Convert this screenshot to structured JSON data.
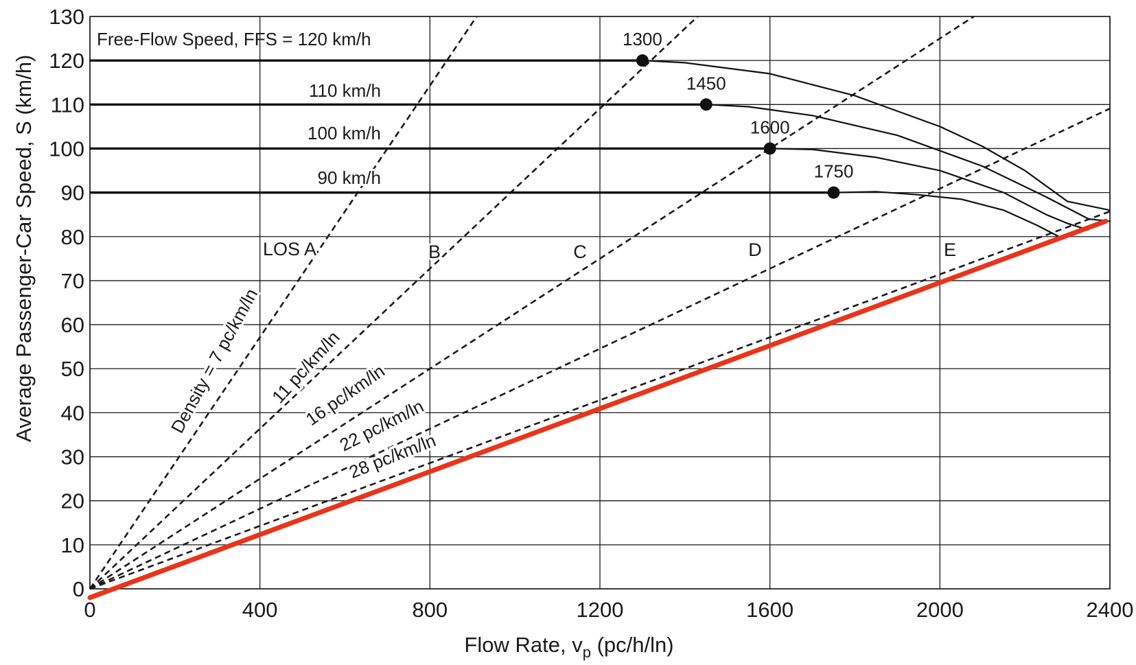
{
  "chart_data": {
    "type": "line",
    "xlabel": "Flow Rate, v",
    "xlabel_sub": "p",
    "xlabel_tail": " (pc/h/ln)",
    "ylabel": "Average Passenger-Car Speed, S (km/h)",
    "xlim": [
      0,
      2400
    ],
    "ylim": [
      0,
      130
    ],
    "x_ticks": [
      0,
      400,
      800,
      1200,
      1600,
      2000,
      2400
    ],
    "y_ticks": [
      0,
      10,
      20,
      30,
      40,
      50,
      60,
      70,
      80,
      90,
      100,
      110,
      120,
      130
    ],
    "grid": true,
    "series": [
      {
        "name": "Free-Flow Speed, FFS = 120 km/h",
        "ffs": 120,
        "breakpoint": 1300,
        "points": [
          [
            0,
            120
          ],
          [
            1300,
            120
          ],
          [
            1400,
            119.5
          ],
          [
            1600,
            117
          ],
          [
            1800,
            112
          ],
          [
            2000,
            105
          ],
          [
            2100,
            100.5
          ],
          [
            2200,
            95
          ],
          [
            2300,
            88
          ],
          [
            2400,
            86
          ]
        ]
      },
      {
        "name": "110 km/h",
        "ffs": 110,
        "breakpoint": 1450,
        "points": [
          [
            0,
            110
          ],
          [
            1450,
            110
          ],
          [
            1550,
            109.5
          ],
          [
            1700,
            107.5
          ],
          [
            1900,
            103
          ],
          [
            2100,
            96
          ],
          [
            2250,
            89
          ],
          [
            2350,
            84
          ],
          [
            2400,
            83.5
          ]
        ]
      },
      {
        "name": "100 km/h",
        "ffs": 100,
        "breakpoint": 1600,
        "points": [
          [
            0,
            100
          ],
          [
            1600,
            100
          ],
          [
            1700,
            99.8
          ],
          [
            1850,
            98
          ],
          [
            2000,
            95
          ],
          [
            2150,
            90
          ],
          [
            2250,
            85
          ],
          [
            2300,
            83
          ],
          [
            2350,
            81.5
          ]
        ]
      },
      {
        "name": "90 km/h",
        "ffs": 90,
        "breakpoint": 1750,
        "points": [
          [
            0,
            90
          ],
          [
            1750,
            90
          ],
          [
            1850,
            90.2
          ],
          [
            1950,
            89.5
          ],
          [
            2050,
            88.5
          ],
          [
            2150,
            86
          ],
          [
            2230,
            82.5
          ],
          [
            2280,
            80
          ]
        ]
      }
    ],
    "breakpoint_labels": [
      "1300",
      "1450",
      "1600",
      "1750"
    ],
    "density_lines": [
      {
        "label": "Density = 7 pc/km/ln",
        "density": 7
      },
      {
        "label": "11 pc/km/ln",
        "density": 11
      },
      {
        "label": "16 pc/km/ln",
        "density": 16
      },
      {
        "label": "22 pc/km/ln",
        "density": 22
      },
      {
        "label": "28 pc/km/ln",
        "density": 28
      }
    ],
    "capacity_line": {
      "points": [
        [
          0,
          -2
        ],
        [
          2390,
          83.5
        ]
      ],
      "color": "#e8351a"
    },
    "los_labels": [
      "LOS A",
      "B",
      "C",
      "D",
      "E"
    ]
  }
}
